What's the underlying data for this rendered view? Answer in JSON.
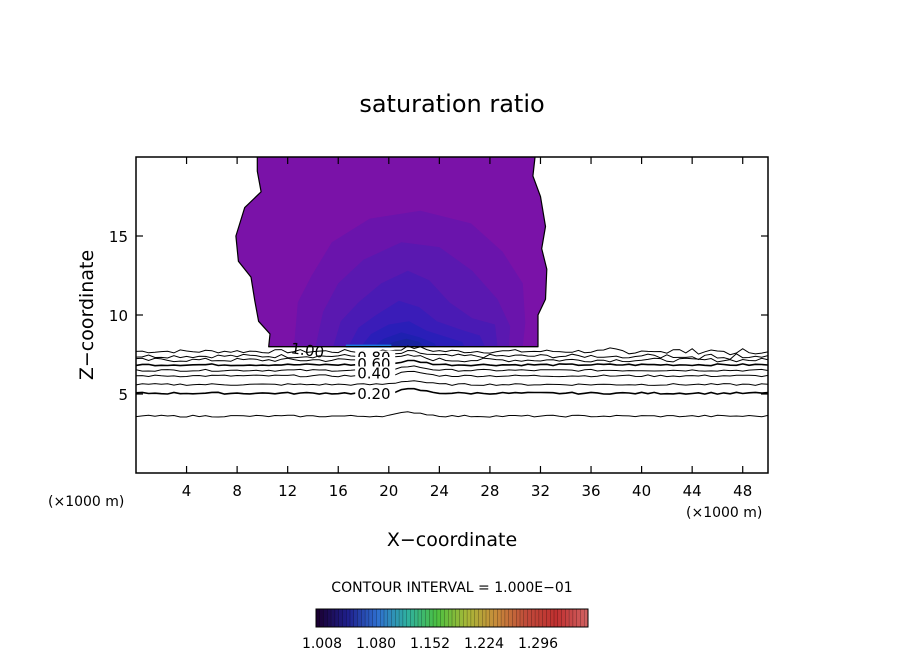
{
  "chart_data": {
    "type": "contour",
    "title": "saturation ratio",
    "xlabel": "X−coordinate",
    "ylabel": "Z−coordinate",
    "x_unit_left": "(×1000 m)",
    "x_unit_right": "(×1000 m)",
    "xlim": [
      0,
      50
    ],
    "ylim": [
      0,
      20
    ],
    "xticks": [
      4,
      8,
      12,
      16,
      20,
      24,
      28,
      32,
      36,
      40,
      44,
      48
    ],
    "yticks": [
      5,
      10,
      15
    ],
    "contour_interval_text": "CONTOUR INTERVAL = 1.000E−01",
    "contour_labels": [
      {
        "text": "1.00",
        "x": 12.2,
        "z": 7.9
      },
      {
        "text": "0.80",
        "x": 17.5,
        "z": 7.3
      },
      {
        "text": "0.60",
        "x": 17.5,
        "z": 6.9
      },
      {
        "text": "0.40",
        "x": 17.5,
        "z": 6.3
      },
      {
        "text": "0.20",
        "x": 17.5,
        "z": 5.0
      }
    ],
    "contour_lines": [
      {
        "level": 0.9,
        "z": 7.7
      },
      {
        "level": 0.8,
        "z": 7.4
      },
      {
        "level": 0.7,
        "z": 7.15
      },
      {
        "level": 0.6,
        "z": 6.85
      },
      {
        "level": 0.5,
        "z": 6.5
      },
      {
        "level": 0.4,
        "z": 6.15
      },
      {
        "level": 0.3,
        "z": 5.6
      },
      {
        "level": 0.2,
        "z": 5.05
      },
      {
        "level": 0.1,
        "z": 3.6
      }
    ],
    "supersaturated_region": {
      "x_range": [
        10.5,
        31.8
      ],
      "z_range": [
        8.0,
        20.0
      ],
      "max_value_near": {
        "x": 21,
        "z": 8.3
      }
    },
    "colorbar": {
      "ticks": [
        "1.008",
        "1.080",
        "1.152",
        "1.224",
        "1.296"
      ],
      "colors": [
        "#1a0033",
        "#1f1f8c",
        "#2f6fd0",
        "#2fb0a0",
        "#4cc040",
        "#a8b838",
        "#c88a3a",
        "#c04a3a",
        "#c03030",
        "#d06060"
      ]
    },
    "fill_colors": [
      "#7a12a8",
      "#6a14ac",
      "#5a18b0",
      "#4a1ab4",
      "#3a1cb8",
      "#2a1eb8",
      "#1e20b0",
      "#18229e",
      "#1a78e0"
    ]
  }
}
